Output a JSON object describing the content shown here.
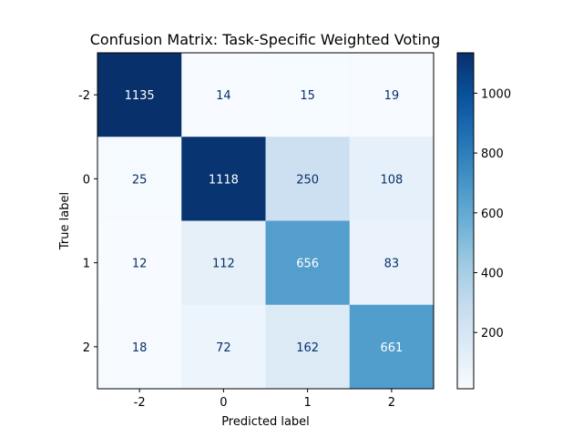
{
  "chart_data": {
    "type": "heatmap",
    "title": "Confusion Matrix: Task-Specific Weighted Voting",
    "xlabel": "Predicted label",
    "ylabel": "True label",
    "x_categories": [
      "-2",
      "0",
      "1",
      "2"
    ],
    "y_categories": [
      "-2",
      "0",
      "1",
      "2"
    ],
    "matrix": [
      [
        1135,
        14,
        15,
        19
      ],
      [
        25,
        1118,
        250,
        108
      ],
      [
        12,
        112,
        656,
        83
      ],
      [
        18,
        72,
        162,
        661
      ]
    ],
    "colormap": "Blues",
    "color_range": [
      12,
      1135
    ],
    "colorbar_ticks": [
      200,
      400,
      600,
      800,
      1000
    ],
    "colorbar_tick_labels": [
      "200",
      "400",
      "600",
      "800",
      "1000"
    ]
  }
}
